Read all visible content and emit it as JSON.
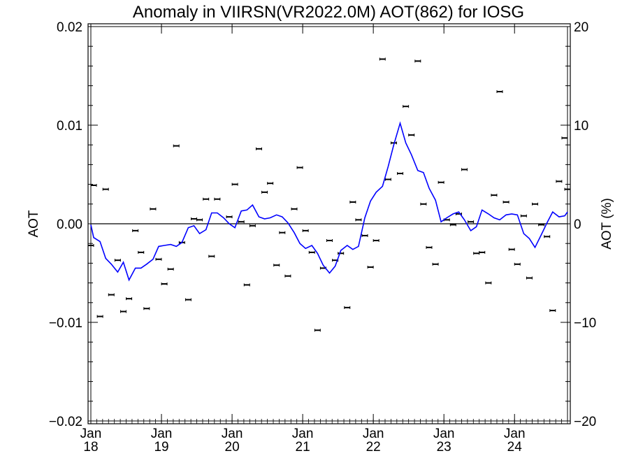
{
  "chart_data": {
    "type": "scatter",
    "title": "Anomaly in VIIRSN(VR2022.0M) AOT(862) for IOSG",
    "ylabel": "AOT",
    "ylabel_right": "AOT (%)",
    "ylim": [
      -0.02,
      0.02
    ],
    "ylim_right": [
      -20,
      20
    ],
    "yticks": [
      -0.02,
      -0.01,
      0.0,
      0.01,
      0.02
    ],
    "ytick_labels": [
      "−0.02",
      "−0.01",
      "0.00",
      "0.01",
      "0.02"
    ],
    "yticks_right": [
      -20,
      -10,
      0,
      10,
      20
    ],
    "ytick_labels_right": [
      "−20",
      "−10",
      "0",
      "10",
      "20"
    ],
    "xlim": [
      2018.0,
      2024.75
    ],
    "xticks": [
      {
        "value": 2018,
        "line1": "Jan",
        "line2": "18"
      },
      {
        "value": 2019,
        "line1": "Jan",
        "line2": "19"
      },
      {
        "value": 2020,
        "line1": "Jan",
        "line2": "20"
      },
      {
        "value": 2021,
        "line1": "Jan",
        "line2": "21"
      },
      {
        "value": 2022,
        "line1": "Jan",
        "line2": "22"
      },
      {
        "value": 2023,
        "line1": "Jan",
        "line2": "23"
      },
      {
        "value": 2024,
        "line1": "Jan",
        "line2": "24"
      }
    ],
    "zero_line": true,
    "series": [
      {
        "kind": "monthly_points",
        "color": "#000000",
        "points": [
          [
            2018.0,
            -0.0022
          ],
          [
            2018.04,
            0.0039
          ],
          [
            2018.13,
            -0.0094
          ],
          [
            2018.21,
            0.0035
          ],
          [
            2018.29,
            -0.0072
          ],
          [
            2018.38,
            -0.0037
          ],
          [
            2018.46,
            -0.0089
          ],
          [
            2018.54,
            -0.0076
          ],
          [
            2018.63,
            -0.0007
          ],
          [
            2018.71,
            -0.0029
          ],
          [
            2018.79,
            -0.0086
          ],
          [
            2018.88,
            0.0015
          ],
          [
            2018.96,
            -0.0036
          ],
          [
            2019.04,
            -0.0061
          ],
          [
            2019.13,
            -0.0046
          ],
          [
            2019.21,
            0.0079
          ],
          [
            2019.29,
            -0.0019
          ],
          [
            2019.38,
            -0.0077
          ],
          [
            2019.46,
            0.0005
          ],
          [
            2019.54,
            0.0004
          ],
          [
            2019.63,
            0.0025
          ],
          [
            2019.71,
            -0.0033
          ],
          [
            2019.79,
            0.0025
          ],
          [
            2019.96,
            0.0007
          ],
          [
            2020.04,
            0.004
          ],
          [
            2020.13,
            0.0002
          ],
          [
            2020.21,
            -0.0062
          ],
          [
            2020.29,
            -0.0002
          ],
          [
            2020.38,
            0.0076
          ],
          [
            2020.46,
            0.0032
          ],
          [
            2020.54,
            0.0041
          ],
          [
            2020.63,
            -0.0042
          ],
          [
            2020.71,
            -0.0009
          ],
          [
            2020.79,
            -0.0053
          ],
          [
            2020.88,
            0.0015
          ],
          [
            2020.96,
            0.0057
          ],
          [
            2021.04,
            -0.0007
          ],
          [
            2021.13,
            -0.0029
          ],
          [
            2021.21,
            -0.0108
          ],
          [
            2021.29,
            -0.0045
          ],
          [
            2021.38,
            -0.0017
          ],
          [
            2021.46,
            -0.0037
          ],
          [
            2021.54,
            -0.003
          ],
          [
            2021.63,
            -0.0085
          ],
          [
            2021.71,
            0.0022
          ],
          [
            2021.79,
            0.0004
          ],
          [
            2021.88,
            -0.0012
          ],
          [
            2021.96,
            -0.0044
          ],
          [
            2022.04,
            -0.0017
          ],
          [
            2022.13,
            0.0167
          ],
          [
            2022.21,
            0.0045
          ],
          [
            2022.29,
            0.0082
          ],
          [
            2022.38,
            0.0051
          ],
          [
            2022.46,
            0.0119
          ],
          [
            2022.54,
            0.009
          ],
          [
            2022.63,
            0.0165
          ],
          [
            2022.71,
            0.002
          ],
          [
            2022.79,
            -0.0024
          ],
          [
            2022.88,
            -0.0041
          ],
          [
            2022.96,
            0.0042
          ],
          [
            2023.04,
            0.0004
          ],
          [
            2023.13,
            -0.0001
          ],
          [
            2023.21,
            0.001
          ],
          [
            2023.29,
            0.0055
          ],
          [
            2023.38,
            0.0002
          ],
          [
            2023.46,
            -0.003
          ],
          [
            2023.54,
            -0.0029
          ],
          [
            2023.63,
            -0.006
          ],
          [
            2023.71,
            0.0029
          ],
          [
            2023.79,
            0.0134
          ],
          [
            2023.88,
            0.0022
          ],
          [
            2023.96,
            -0.0026
          ],
          [
            2024.04,
            -0.0041
          ],
          [
            2024.13,
            0.0008
          ],
          [
            2024.21,
            -0.0055
          ],
          [
            2024.29,
            0.002
          ],
          [
            2024.38,
            -0.0001
          ],
          [
            2024.46,
            -0.0013
          ],
          [
            2024.54,
            -0.0088
          ],
          [
            2024.63,
            0.0043
          ],
          [
            2024.71,
            0.0087
          ],
          [
            2024.75,
            0.0035
          ]
        ]
      },
      {
        "kind": "running_mean",
        "color": "#0000ff",
        "points": [
          [
            2018.0,
            -0.0001
          ],
          [
            2018.04,
            -0.0014
          ],
          [
            2018.13,
            -0.0018
          ],
          [
            2018.21,
            -0.0035
          ],
          [
            2018.29,
            -0.0041
          ],
          [
            2018.38,
            -0.0049
          ],
          [
            2018.46,
            -0.0039
          ],
          [
            2018.54,
            -0.0057
          ],
          [
            2018.63,
            -0.0045
          ],
          [
            2018.71,
            -0.0045
          ],
          [
            2018.79,
            -0.0041
          ],
          [
            2018.88,
            -0.0036
          ],
          [
            2018.96,
            -0.0023
          ],
          [
            2019.04,
            -0.0022
          ],
          [
            2019.13,
            -0.0021
          ],
          [
            2019.21,
            -0.0023
          ],
          [
            2019.29,
            -0.0019
          ],
          [
            2019.38,
            -0.0004
          ],
          [
            2019.46,
            -0.0002
          ],
          [
            2019.54,
            -0.001
          ],
          [
            2019.63,
            -0.0006
          ],
          [
            2019.71,
            0.0011
          ],
          [
            2019.79,
            0.0011
          ],
          [
            2019.88,
            0.0006
          ],
          [
            2019.96,
            0.0
          ],
          [
            2020.04,
            -0.0004
          ],
          [
            2020.13,
            0.0013
          ],
          [
            2020.21,
            0.0014
          ],
          [
            2020.29,
            0.0019
          ],
          [
            2020.38,
            0.0007
          ],
          [
            2020.46,
            0.0005
          ],
          [
            2020.54,
            0.0006
          ],
          [
            2020.63,
            0.0009
          ],
          [
            2020.71,
            0.0007
          ],
          [
            2020.79,
            0.0001
          ],
          [
            2020.88,
            -0.0009
          ],
          [
            2020.96,
            -0.002
          ],
          [
            2021.04,
            -0.0025
          ],
          [
            2021.13,
            -0.0022
          ],
          [
            2021.21,
            -0.003
          ],
          [
            2021.29,
            -0.0042
          ],
          [
            2021.38,
            -0.005
          ],
          [
            2021.46,
            -0.0043
          ],
          [
            2021.54,
            -0.0027
          ],
          [
            2021.63,
            -0.0022
          ],
          [
            2021.71,
            -0.0026
          ],
          [
            2021.79,
            -0.0023
          ],
          [
            2021.88,
            0.0006
          ],
          [
            2021.96,
            0.0023
          ],
          [
            2022.04,
            0.0032
          ],
          [
            2022.13,
            0.0038
          ],
          [
            2022.21,
            0.0058
          ],
          [
            2022.29,
            0.008
          ],
          [
            2022.38,
            0.0102
          ],
          [
            2022.46,
            0.0082
          ],
          [
            2022.54,
            0.007
          ],
          [
            2022.63,
            0.0054
          ],
          [
            2022.71,
            0.0052
          ],
          [
            2022.79,
            0.0036
          ],
          [
            2022.88,
            0.0024
          ],
          [
            2022.96,
            0.0002
          ],
          [
            2023.04,
            0.0006
          ],
          [
            2023.13,
            0.001
          ],
          [
            2023.21,
            0.0012
          ],
          [
            2023.29,
            0.0004
          ],
          [
            2023.38,
            -0.0007
          ],
          [
            2023.46,
            -0.0003
          ],
          [
            2023.54,
            0.0014
          ],
          [
            2023.63,
            0.001
          ],
          [
            2023.71,
            0.0006
          ],
          [
            2023.79,
            0.0004
          ],
          [
            2023.88,
            0.0009
          ],
          [
            2023.96,
            0.001
          ],
          [
            2024.04,
            0.0009
          ],
          [
            2024.13,
            -0.001
          ],
          [
            2024.21,
            -0.0015
          ],
          [
            2024.29,
            -0.0024
          ],
          [
            2024.38,
            -0.0011
          ],
          [
            2024.46,
            0.0001
          ],
          [
            2024.54,
            0.0012
          ],
          [
            2024.63,
            0.0007
          ],
          [
            2024.71,
            0.0008
          ],
          [
            2024.75,
            0.0012
          ]
        ]
      }
    ]
  }
}
